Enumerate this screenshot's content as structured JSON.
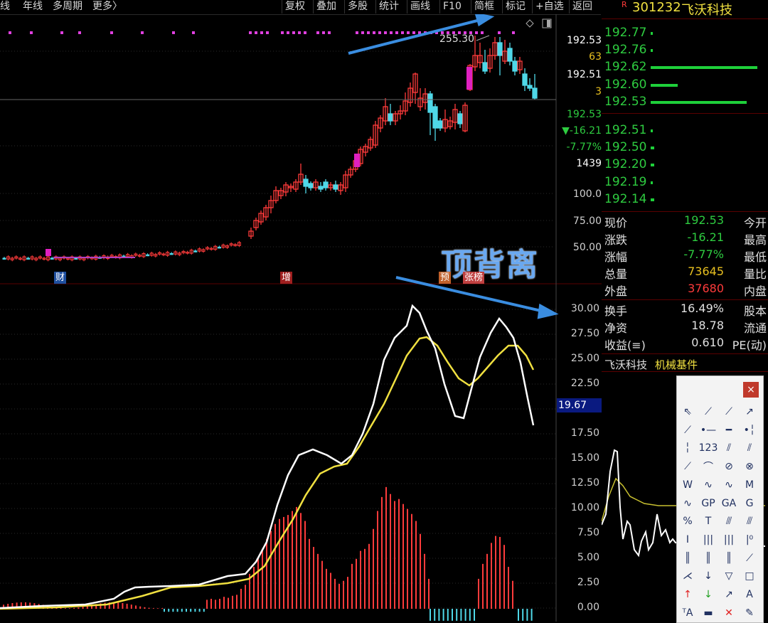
{
  "toolbar": {
    "left_items": [
      "线",
      "年线",
      "多周期",
      "更多〉"
    ],
    "right_items": [
      "复权",
      "叠加",
      "多股",
      "统计",
      "画线",
      "F10",
      "简框",
      "标记",
      "+自选",
      "返回"
    ]
  },
  "main_chart": {
    "price_axis": [
      "192.53",
      "63",
      "192.51",
      "3",
      "192.53",
      "▼-16.21",
      "-7.77%",
      "1439",
      "100.0",
      "75.00",
      "50.00"
    ],
    "high_label": "255.30",
    "event_tags": [
      "财",
      "增",
      "预",
      "张榜"
    ],
    "annotation": "顶背离"
  },
  "indicator": {
    "axis": [
      "30.00",
      "27.50",
      "25.00",
      "22.50",
      "20.00",
      "17.50",
      "15.00",
      "12.50",
      "10.00",
      "7.50",
      "5.00",
      "2.50",
      "0.00"
    ],
    "current_value": "19.67"
  },
  "stock": {
    "badge": "R",
    "code": "301232",
    "name": "飞沃科技",
    "sector": "机械基件"
  },
  "depth": [
    {
      "price": "192.77",
      "fill": 0.01
    },
    {
      "price": "192.76",
      "fill": 0.01
    },
    {
      "price": "192.62",
      "fill": 1.0
    },
    {
      "price": "192.60",
      "fill": 0.25
    },
    {
      "price": "192.53",
      "fill": 0.9
    },
    {
      "price": "192.51",
      "fill": 0.01
    },
    {
      "price": "192.50",
      "fill": 0.03
    },
    {
      "price": "192.20",
      "fill": 0.03
    },
    {
      "price": "192.19",
      "fill": 0.01
    },
    {
      "price": "192.14",
      "fill": 0.03
    }
  ],
  "quote": [
    {
      "label": "现价",
      "value": "192.53",
      "label2": "今开",
      "color": "#2ecc40"
    },
    {
      "label": "涨跌",
      "value": "-16.21",
      "label2": "最高",
      "color": "#2ecc40"
    },
    {
      "label": "涨幅",
      "value": "-7.77%",
      "label2": "最低",
      "color": "#2ecc40"
    },
    {
      "label": "总量",
      "value": "73645",
      "label2": "量比",
      "color": "#e8c020"
    },
    {
      "label": "外盘",
      "value": "37680",
      "label2": "内盘",
      "color": "#ff3b3b"
    },
    {
      "label": "换手",
      "value": "16.49%",
      "label2": "股本",
      "color": "#e0e0e0"
    },
    {
      "label": "净资",
      "value": "18.78",
      "label2": "流通",
      "color": "#e0e0e0"
    },
    {
      "label": "收益(≡)",
      "value": "0.610",
      "label2": "PE(动)",
      "color": "#e0e0e0"
    }
  ],
  "palette": {
    "close": "×",
    "tools": [
      "cursor-icon",
      "line-icon",
      "ray-icon",
      "arrow-line-icon",
      "segment-icon",
      "dot-line-icon",
      "hline-icon",
      "vline-dot-icon",
      "vline-icon",
      "label-123-icon",
      "parallel-icon",
      "channel-icon",
      "fib-icon",
      "arc-icon",
      "circle-icon",
      "ellipse-icon",
      "w-pattern-icon",
      "wave-icon",
      "zigzag-icon",
      "m-pattern-icon",
      "wave2-icon",
      "gp-icon",
      "ga-icon",
      "g-icon",
      "percent-icon",
      "t-icon",
      "gann-lines-icon",
      "gann-fan-icon",
      "bracket-icon",
      "period-lines-icon",
      "fib-time-icon",
      "q-icon",
      "bars-icon",
      "bars2-icon",
      "bars3-icon",
      "fan-icon",
      "fan2-icon",
      "down-arrow-icon",
      "triangle-icon",
      "rect-icon",
      "red-arrow-up-icon",
      "green-arrow-down-icon",
      "text-arrow-icon",
      "text-a-icon",
      "text-size-icon",
      "eraser-icon",
      "delete-icon",
      "paint-icon"
    ],
    "tool_glyphs": [
      "⇖",
      "⟋",
      "⟋",
      "↗",
      "⟋",
      "•—",
      "━",
      "•╎",
      "╎",
      "123",
      "⫽",
      "⫽",
      "⟋",
      "⌒",
      "⊘",
      "⊗",
      "W",
      "∿",
      "∿",
      "M",
      "∿",
      "GP",
      "GA",
      "G",
      "%",
      "T",
      "⫻",
      "⫻",
      "Ⅰ",
      "|||",
      "|||",
      "|⁰",
      "║",
      "║",
      "║",
      "⟋",
      "⋌",
      "↓",
      "▽",
      "□",
      "↑",
      "↓",
      "↗",
      "A",
      "ᵀA",
      "▬",
      "✕",
      "✎"
    ]
  },
  "colors": {
    "up": "#ff3b3b",
    "down": "#4fd8e8",
    "accent_blue": "#3a8de0",
    "ma_yellow": "#f0e040"
  }
}
